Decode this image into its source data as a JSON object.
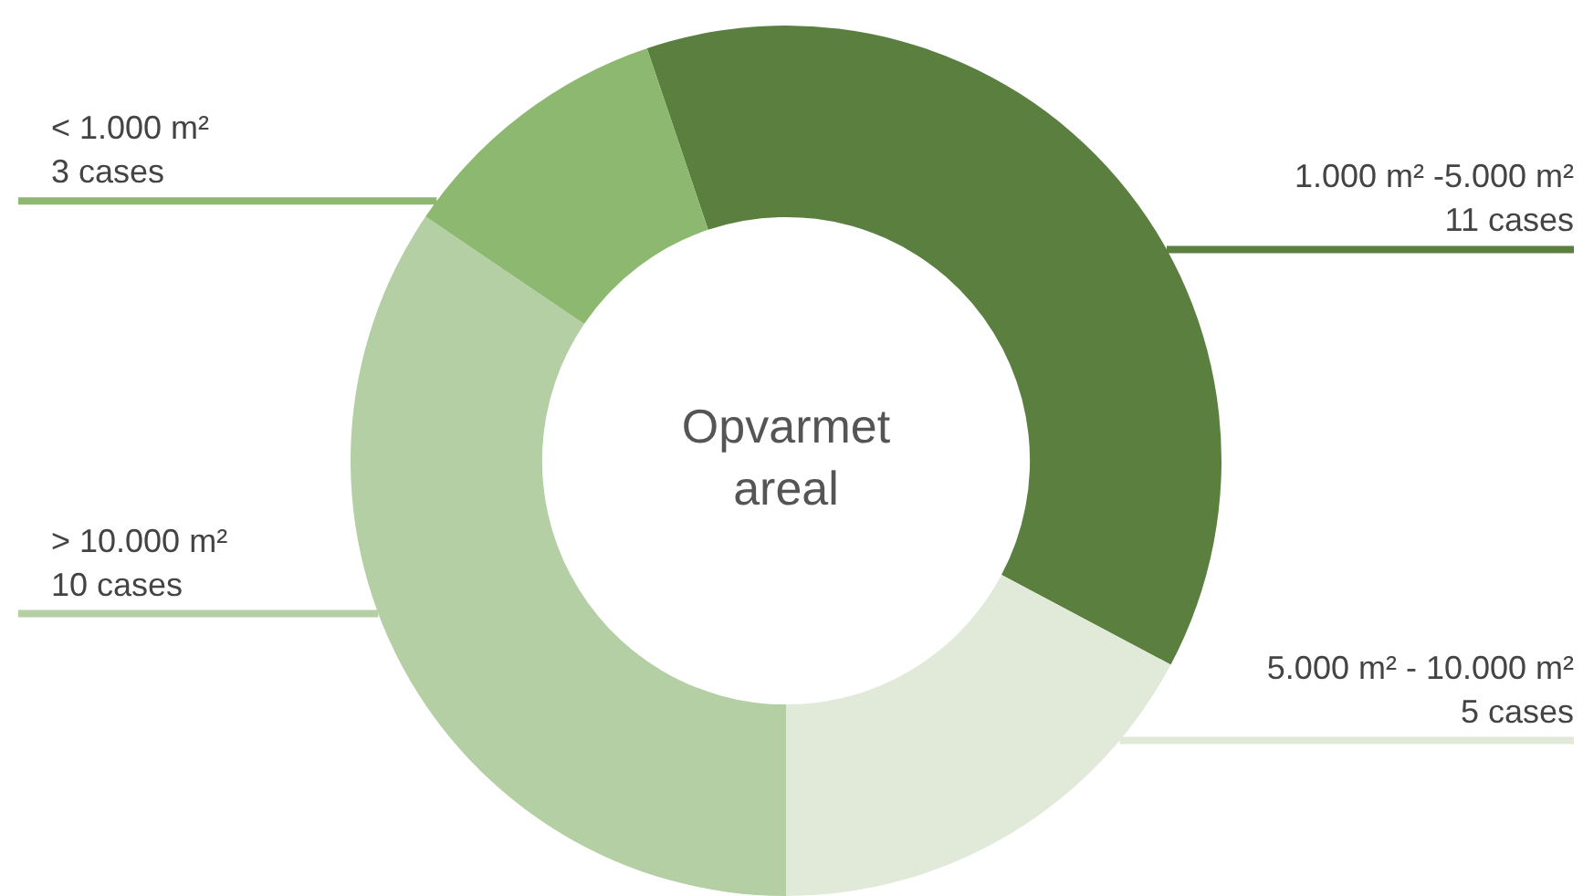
{
  "chart_data": {
    "type": "donut",
    "title": "Opvarmet areal",
    "categories": [
      "1.000 m² -5.000 m²",
      "5.000 m² - 10.000 m²",
      "> 10.000 m²",
      "< 1.000 m²"
    ],
    "values": [
      11,
      5,
      10,
      3
    ],
    "value_labels": [
      "11 cases",
      "5 cases",
      "10 cases",
      "3 cases"
    ],
    "colors": [
      "#5a7f3f",
      "#e1ead8",
      "#b3cfa3",
      "#8db870"
    ],
    "legend": false
  }
}
